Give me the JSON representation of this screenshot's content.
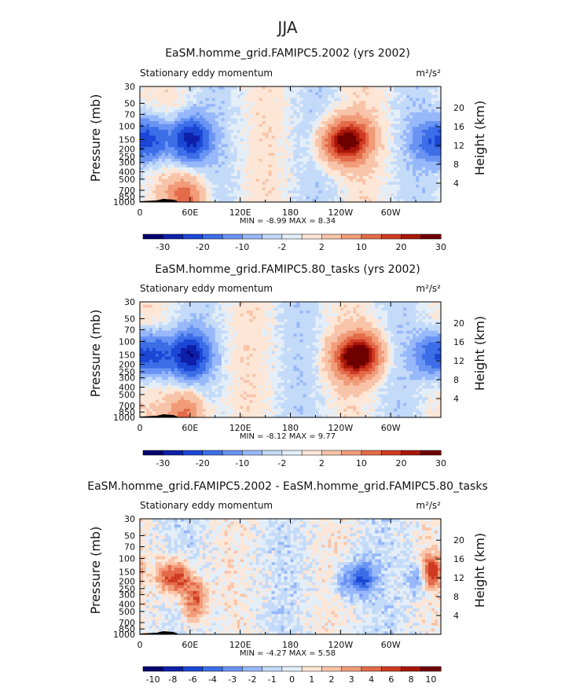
{
  "figure": {
    "suptitle": "JJA"
  },
  "chart_data": [
    {
      "type": "heatmap",
      "title": "EaSM.homme_grid.FAMIPC5.2002 (yrs 2002)",
      "left_label": "Stationary eddy momentum",
      "units": "m²/s²",
      "ylabel": "Pressure (mb)",
      "ylabel_right": "Height (km)",
      "xticks": [
        "0",
        "60E",
        "120E",
        "180",
        "120W",
        "60W"
      ],
      "yticks": [
        "30",
        "50",
        "70",
        "100",
        "150",
        "200",
        "250",
        "300",
        "400",
        "500",
        "700",
        "850",
        "1000"
      ],
      "yticks_right": [
        "20",
        "16",
        "12",
        "8",
        "4"
      ],
      "stats": {
        "min": -8.99,
        "max": 8.34
      },
      "stats_text": "MIN =   -8.99   MAX =   8.34",
      "colorbar_labels": [
        "-30",
        "-20",
        "-10",
        "-2",
        "2",
        "10",
        "20",
        "30"
      ],
      "features": [
        {
          "lon": 15,
          "p": 150,
          "v": -6
        },
        {
          "lon": 60,
          "p": 150,
          "v": -9
        },
        {
          "lon": 255,
          "p": 150,
          "v": 8
        },
        {
          "lon": 235,
          "p": 170,
          "v": 6
        },
        {
          "lon": 348,
          "p": 160,
          "v": -4
        },
        {
          "lon": 55,
          "p": 900,
          "v": 6
        }
      ]
    },
    {
      "type": "heatmap",
      "title": "EaSM.homme_grid.FAMIPC5.80_tasks (yrs 2002)",
      "left_label": "Stationary eddy momentum",
      "units": "m²/s²",
      "ylabel": "Pressure (mb)",
      "ylabel_right": "Height (km)",
      "xticks": [
        "0",
        "60E",
        "120E",
        "180",
        "120W",
        "60W"
      ],
      "yticks": [
        "30",
        "50",
        "70",
        "100",
        "150",
        "200",
        "250",
        "300",
        "400",
        "500",
        "700",
        "850",
        "1000"
      ],
      "yticks_right": [
        "20",
        "16",
        "12",
        "8",
        "4"
      ],
      "stats": {
        "min": -8.12,
        "max": 9.77
      },
      "stats_text": "MIN =   -8.12   MAX =   9.77",
      "colorbar_labels": [
        "-30",
        "-20",
        "-10",
        "-2",
        "2",
        "10",
        "20",
        "30"
      ],
      "features": [
        {
          "lon": 18,
          "p": 150,
          "v": -6
        },
        {
          "lon": 60,
          "p": 150,
          "v": -9
        },
        {
          "lon": 268,
          "p": 150,
          "v": 9
        },
        {
          "lon": 248,
          "p": 170,
          "v": 6
        },
        {
          "lon": 350,
          "p": 150,
          "v": -5
        },
        {
          "lon": 55,
          "p": 900,
          "v": 6
        }
      ]
    },
    {
      "type": "heatmap",
      "title": "EaSM.homme_grid.FAMIPC5.2002 - EaSM.homme_grid.FAMIPC5.80_tasks",
      "left_label": "Stationary eddy momentum",
      "units": "m²/s²",
      "ylabel": "Pressure (mb)",
      "ylabel_right": "Height (km)",
      "xticks": [
        "0",
        "60E",
        "120E",
        "180",
        "120W",
        "60W"
      ],
      "yticks": [
        "30",
        "50",
        "70",
        "100",
        "150",
        "200",
        "250",
        "300",
        "400",
        "500",
        "700",
        "850",
        "1000"
      ],
      "yticks_right": [
        "20",
        "16",
        "12",
        "8",
        "4"
      ],
      "stats": {
        "min": -4.27,
        "max": 5.58
      },
      "stats_text": "MIN =   -4.27   MAX =   5.58",
      "colorbar_labels": [
        "-10",
        "-8",
        "-6",
        "-4",
        "-3",
        "-2",
        "-1",
        "0",
        "1",
        "2",
        "3",
        "4",
        "6",
        "8",
        "10"
      ],
      "features": [
        {
          "lon": 30,
          "p": 170,
          "v": 3
        },
        {
          "lon": 48,
          "p": 180,
          "v": 4.5
        },
        {
          "lon": 68,
          "p": 280,
          "v": 3
        },
        {
          "lon": 63,
          "p": 480,
          "v": 2.5
        },
        {
          "lon": 268,
          "p": 180,
          "v": -4
        },
        {
          "lon": 248,
          "p": 200,
          "v": -2.5
        },
        {
          "lon": 348,
          "p": 150,
          "v": 5.5
        },
        {
          "lon": 335,
          "p": 180,
          "v": -3
        }
      ]
    }
  ],
  "colors": {
    "palette": [
      "#04006f",
      "#0e1fa8",
      "#1c47d6",
      "#3d6ee8",
      "#6a94f3",
      "#97b8fa",
      "#c4daf9",
      "#e3eef8",
      "#fde6d6",
      "#f8c4a9",
      "#f19b78",
      "#e36b4a",
      "#cf3b22",
      "#a8170a",
      "#6f0000"
    ]
  }
}
